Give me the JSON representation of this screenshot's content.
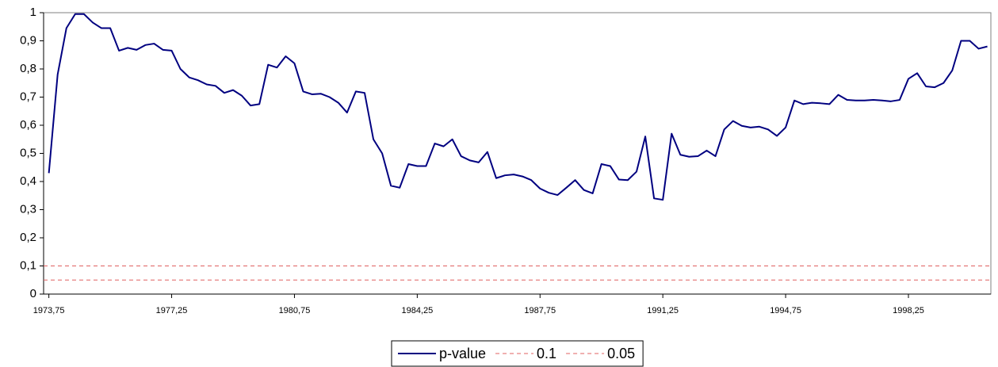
{
  "chart_data": {
    "type": "line",
    "x": [
      1973.75,
      1974,
      1974.25,
      1974.5,
      1974.75,
      1975,
      1975.25,
      1975.5,
      1975.75,
      1976,
      1976.25,
      1976.5,
      1976.75,
      1977,
      1977.25,
      1977.5,
      1977.75,
      1978,
      1978.25,
      1978.5,
      1978.75,
      1979,
      1979.25,
      1979.5,
      1979.75,
      1980,
      1980.25,
      1980.5,
      1980.75,
      1981,
      1981.25,
      1981.5,
      1981.75,
      1982,
      1982.25,
      1982.5,
      1982.75,
      1983,
      1983.25,
      1983.5,
      1983.75,
      1984,
      1984.25,
      1984.5,
      1984.75,
      1985,
      1985.25,
      1985.5,
      1985.75,
      1986,
      1986.25,
      1986.5,
      1986.75,
      1987,
      1987.25,
      1987.5,
      1987.75,
      1988,
      1988.25,
      1988.5,
      1988.75,
      1989,
      1989.25,
      1989.5,
      1989.75,
      1990,
      1990.25,
      1990.5,
      1990.75,
      1991,
      1991.25,
      1991.5,
      1991.75,
      1992,
      1992.25,
      1992.5,
      1992.75,
      1993,
      1993.25,
      1993.5,
      1993.75,
      1994,
      1994.25,
      1994.5,
      1994.75,
      1995,
      1995.25,
      1995.5,
      1995.75,
      1996,
      1996.25,
      1996.5,
      1996.75,
      1997,
      1997.25,
      1997.5,
      1997.75,
      1998,
      1998.25,
      1998.5,
      1998.75,
      1999,
      1999.25,
      1999.5,
      1999.75,
      2000,
      2000.25,
      2000.5
    ],
    "series": [
      {
        "name": "p-value",
        "color": "#000080",
        "values": [
          0.43,
          0.78,
          0.945,
          0.995,
          0.995,
          0.965,
          0.945,
          0.945,
          0.865,
          0.875,
          0.868,
          0.885,
          0.89,
          0.868,
          0.865,
          0.8,
          0.77,
          0.76,
          0.745,
          0.74,
          0.715,
          0.725,
          0.705,
          0.67,
          0.675,
          0.815,
          0.805,
          0.845,
          0.82,
          0.72,
          0.71,
          0.712,
          0.7,
          0.68,
          0.645,
          0.72,
          0.715,
          0.55,
          0.5,
          0.385,
          0.378,
          0.462,
          0.455,
          0.455,
          0.535,
          0.525,
          0.55,
          0.49,
          0.475,
          0.468,
          0.505,
          0.412,
          0.422,
          0.425,
          0.418,
          0.405,
          0.375,
          0.36,
          0.352,
          0.378,
          0.405,
          0.37,
          0.358,
          0.462,
          0.455,
          0.407,
          0.405,
          0.435,
          0.56,
          0.34,
          0.335,
          0.57,
          0.495,
          0.488,
          0.49,
          0.51,
          0.49,
          0.585,
          0.615,
          0.598,
          0.592,
          0.595,
          0.585,
          0.562,
          0.592,
          0.688,
          0.675,
          0.68,
          0.678,
          0.675,
          0.708,
          0.69,
          0.688,
          0.688,
          0.69,
          0.688,
          0.685,
          0.69,
          0.765,
          0.785,
          0.738,
          0.735,
          0.75,
          0.795,
          0.9,
          0.9,
          0.872,
          0.88
        ]
      }
    ],
    "reference_lines": [
      {
        "name": "0.1",
        "value": 0.1,
        "color": "#e06060",
        "dashed": true
      },
      {
        "name": "0.05",
        "value": 0.05,
        "color": "#e06060",
        "dashed": true
      }
    ],
    "xlim": [
      1973.6,
      2000.6
    ],
    "xticks": [
      {
        "value": 1973.75,
        "label": "1973,75"
      },
      {
        "value": 1977.25,
        "label": "1977,25"
      },
      {
        "value": 1980.75,
        "label": "1980,75"
      },
      {
        "value": 1984.25,
        "label": "1984,25"
      },
      {
        "value": 1987.75,
        "label": "1987,75"
      },
      {
        "value": 1991.25,
        "label": "1991,25"
      },
      {
        "value": 1994.75,
        "label": "1994,75"
      },
      {
        "value": 1998.25,
        "label": "1998,25"
      }
    ],
    "ylim": [
      0,
      1
    ],
    "yticks": [
      0,
      {
        "value": 0.1,
        "label": "0,1"
      },
      {
        "value": 0.2,
        "label": "0,2"
      },
      {
        "value": 0.3,
        "label": "0,3"
      },
      {
        "value": 0.4,
        "label": "0,4"
      },
      {
        "value": 0.5,
        "label": "0,5"
      },
      {
        "value": 0.6,
        "label": "0,6"
      },
      {
        "value": 0.7,
        "label": "0,7"
      },
      {
        "value": 0.8,
        "label": "0,8"
      },
      {
        "value": 0.9,
        "label": "0,9"
      },
      1
    ],
    "legend": "bottom"
  }
}
